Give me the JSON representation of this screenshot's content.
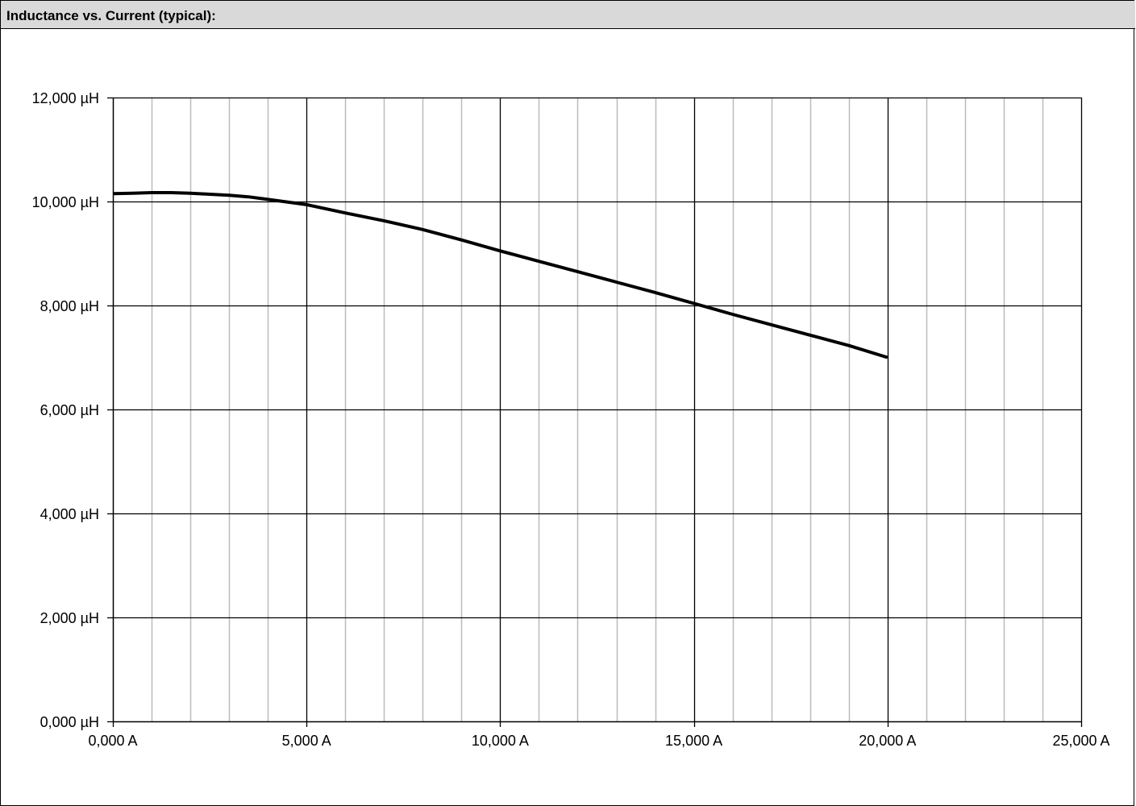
{
  "header": {
    "title": "Inductance vs. Current (typical):"
  },
  "chart_data": {
    "type": "line",
    "title": "",
    "xlabel": "",
    "ylabel": "",
    "xlim": [
      0,
      25
    ],
    "ylim": [
      0,
      12
    ],
    "x_ticks": [
      {
        "value": 0,
        "label": "0,000 A"
      },
      {
        "value": 5,
        "label": "5,000 A"
      },
      {
        "value": 10,
        "label": "10,000 A"
      },
      {
        "value": 15,
        "label": "15,000 A"
      },
      {
        "value": 20,
        "label": "20,000 A"
      },
      {
        "value": 25,
        "label": "25,000 A"
      }
    ],
    "y_ticks": [
      {
        "value": 0,
        "label": "0,000 µH"
      },
      {
        "value": 2,
        "label": "2,000 µH"
      },
      {
        "value": 4,
        "label": "4,000 µH"
      },
      {
        "value": 6,
        "label": "6,000 µH"
      },
      {
        "value": 8,
        "label": "8,000 µH"
      },
      {
        "value": 10,
        "label": "10,000 µH"
      },
      {
        "value": 12,
        "label": "12,000 µH"
      }
    ],
    "minor_x_step": 1,
    "grid": true,
    "colors": {
      "major_grid": "#000000",
      "minor_grid": "#bbbbbb",
      "line": "#000000"
    },
    "series": [
      {
        "x": [
          0,
          0.5,
          1,
          1.5,
          2,
          2.5,
          3,
          3.5,
          4,
          4.5,
          5,
          6,
          7,
          8,
          9,
          10,
          11,
          12,
          13,
          14,
          15,
          16,
          17,
          18,
          19,
          20
        ],
        "values": [
          10.15,
          10.16,
          10.17,
          10.17,
          10.16,
          10.14,
          10.12,
          10.09,
          10.04,
          9.99,
          9.94,
          9.78,
          9.63,
          9.46,
          9.26,
          9.05,
          8.85,
          8.65,
          8.45,
          8.25,
          8.04,
          7.83,
          7.63,
          7.43,
          7.23,
          7.0
        ]
      }
    ]
  }
}
